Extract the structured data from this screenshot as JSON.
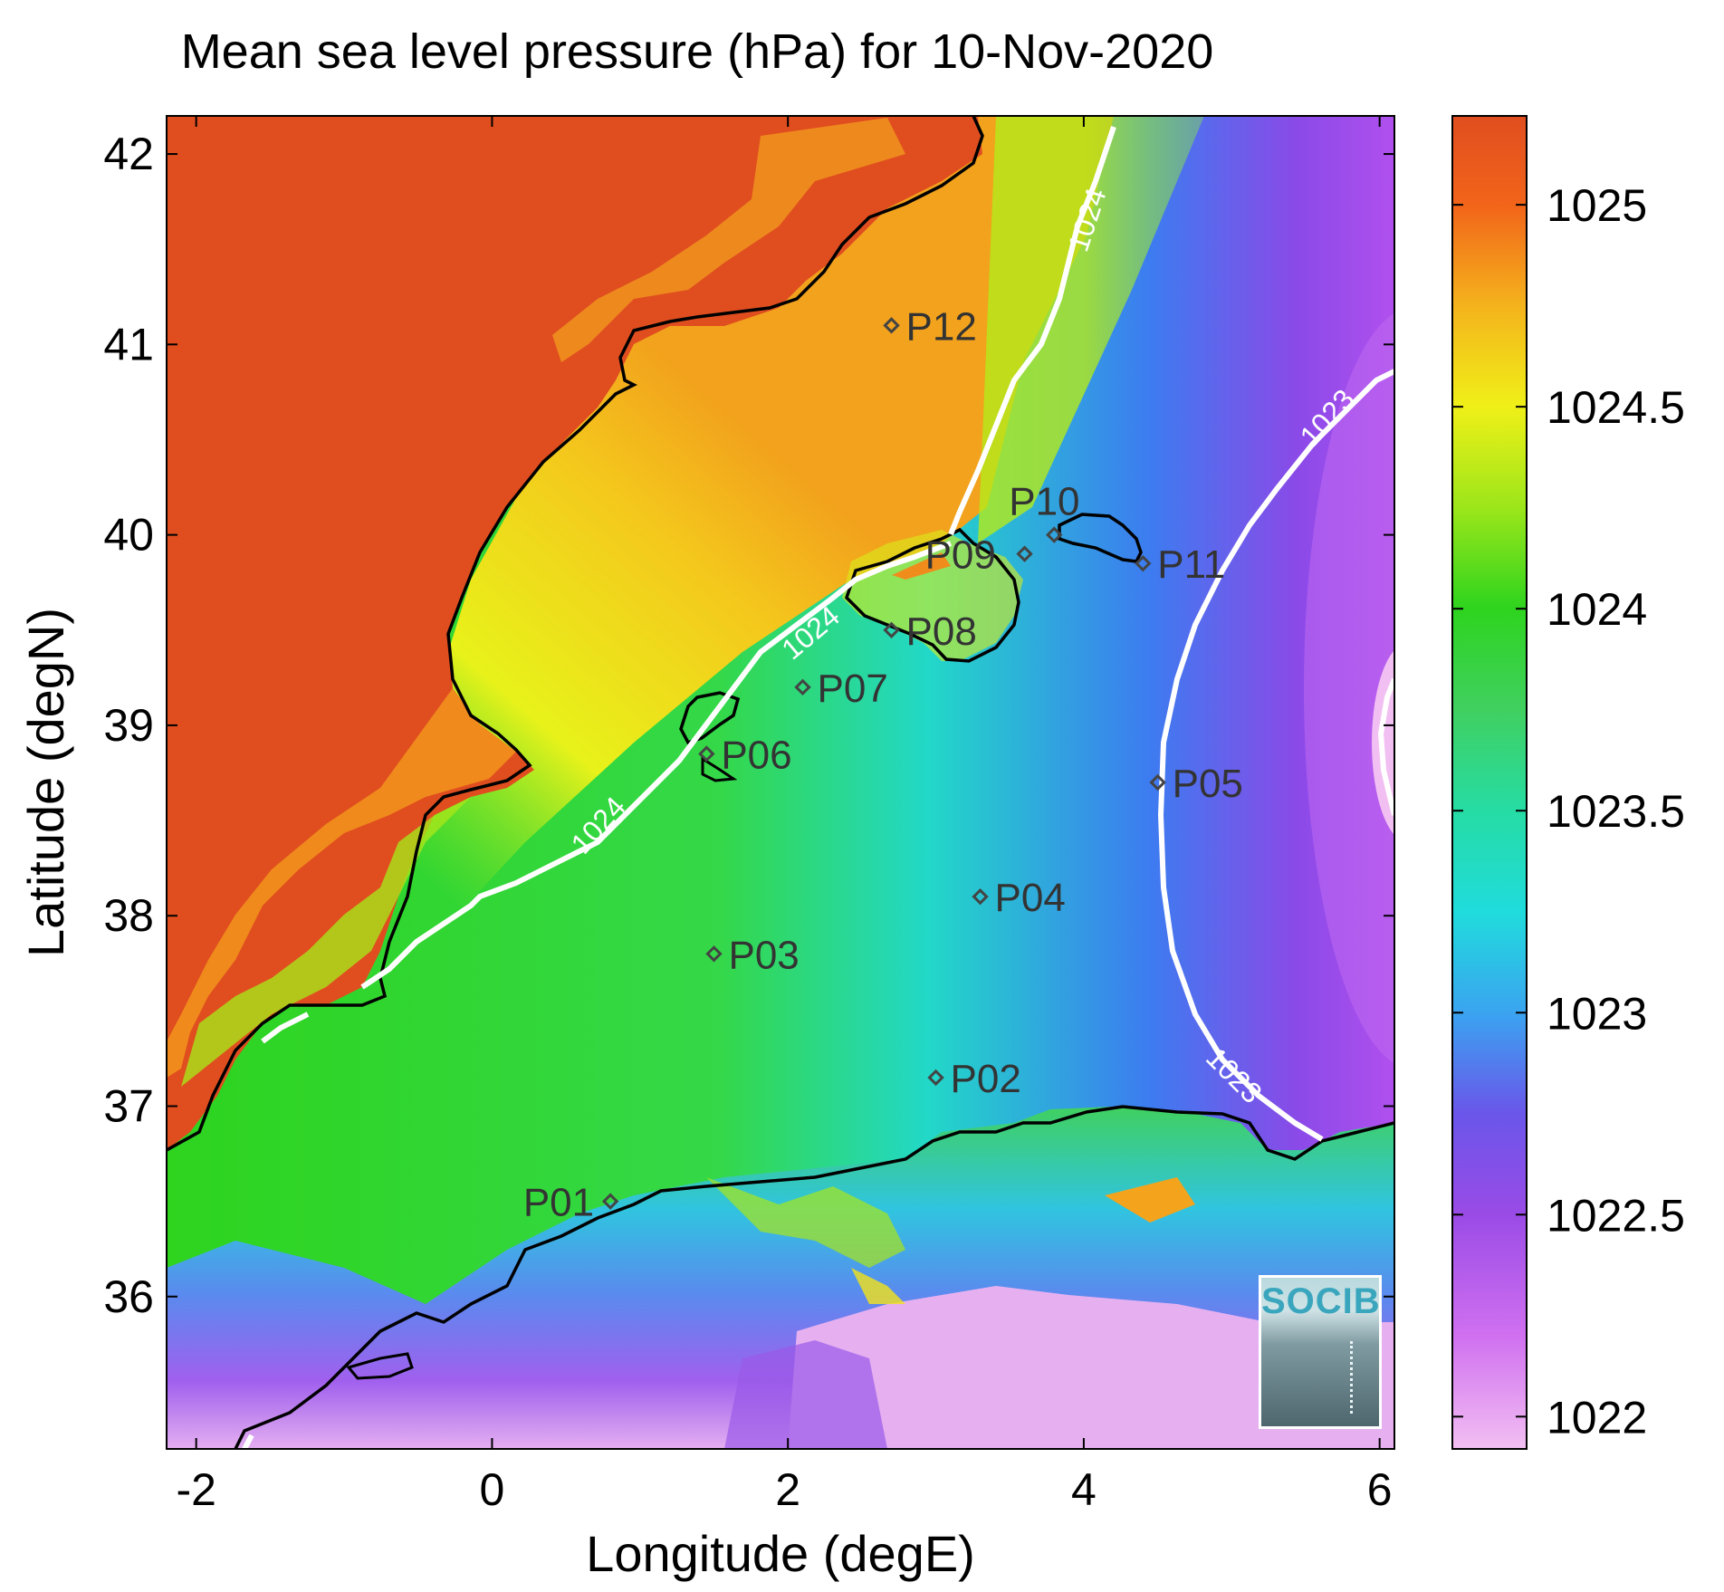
{
  "title": "Mean sea level pressure (hPa) for 10-Nov-2020",
  "logo_text": "SOCIB",
  "map": {
    "lon_range": [
      -2.2,
      6.1
    ],
    "lat_range": [
      35.2,
      42.2
    ],
    "x_ticks": [
      -2,
      0,
      2,
      4,
      6
    ],
    "x_tick_labels": [
      "-2",
      "0",
      "2",
      "4",
      "6"
    ],
    "y_ticks": [
      36,
      37,
      38,
      39,
      40,
      41,
      42
    ],
    "y_tick_labels": [
      "36",
      "37",
      "38",
      "39",
      "40",
      "41",
      "42"
    ],
    "xlabel": "Longitude (degE)",
    "ylabel": "Latitude (degN)",
    "colors": {
      "land_high": "#e04e1f",
      "coastline": "#000000",
      "contour": "#ffffff",
      "station_marker": "#444444"
    }
  },
  "stations": [
    {
      "id": "P01",
      "lon": 0.8,
      "lat": 36.5
    },
    {
      "id": "P02",
      "lon": 3.0,
      "lat": 37.15
    },
    {
      "id": "P03",
      "lon": 1.5,
      "lat": 37.8
    },
    {
      "id": "P04",
      "lon": 3.3,
      "lat": 38.1
    },
    {
      "id": "P05",
      "lon": 4.5,
      "lat": 38.7
    },
    {
      "id": "P06",
      "lon": 1.45,
      "lat": 38.85
    },
    {
      "id": "P07",
      "lon": 2.1,
      "lat": 39.2
    },
    {
      "id": "P08",
      "lon": 2.7,
      "lat": 39.5
    },
    {
      "id": "P09",
      "lon": 3.6,
      "lat": 39.9
    },
    {
      "id": "P10",
      "lon": 3.8,
      "lat": 40.0
    },
    {
      "id": "P11",
      "lon": 4.4,
      "lat": 39.85
    },
    {
      "id": "P12",
      "lon": 2.7,
      "lat": 41.1
    }
  ],
  "contour_labels": [
    "1024",
    "1024",
    "1024",
    "1023",
    "1023"
  ],
  "colorbar": {
    "label_values": [
      1025,
      1024.5,
      1024,
      1023.5,
      1023,
      1022.5,
      1022
    ],
    "labels": [
      "1025",
      "1024.5",
      "1024",
      "1023.5",
      "1023",
      "1022.5",
      "1022"
    ],
    "range": [
      1021.92,
      1025.22
    ],
    "stops": [
      {
        "value": 1021.92,
        "color": "#f2bff2"
      },
      {
        "value": 1022.2,
        "color": "#d070f0"
      },
      {
        "value": 1022.5,
        "color": "#9a4be6"
      },
      {
        "value": 1022.75,
        "color": "#6a56ea"
      },
      {
        "value": 1023.0,
        "color": "#3aa4f0"
      },
      {
        "value": 1023.25,
        "color": "#20dcdc"
      },
      {
        "value": 1023.5,
        "color": "#26dca4"
      },
      {
        "value": 1023.75,
        "color": "#40d060"
      },
      {
        "value": 1024.0,
        "color": "#2ed41e"
      },
      {
        "value": 1024.25,
        "color": "#9ce61a"
      },
      {
        "value": 1024.5,
        "color": "#f0f018"
      },
      {
        "value": 1024.75,
        "color": "#f4b31c"
      },
      {
        "value": 1025.0,
        "color": "#f2641a"
      },
      {
        "value": 1025.22,
        "color": "#e04e1f"
      }
    ]
  }
}
